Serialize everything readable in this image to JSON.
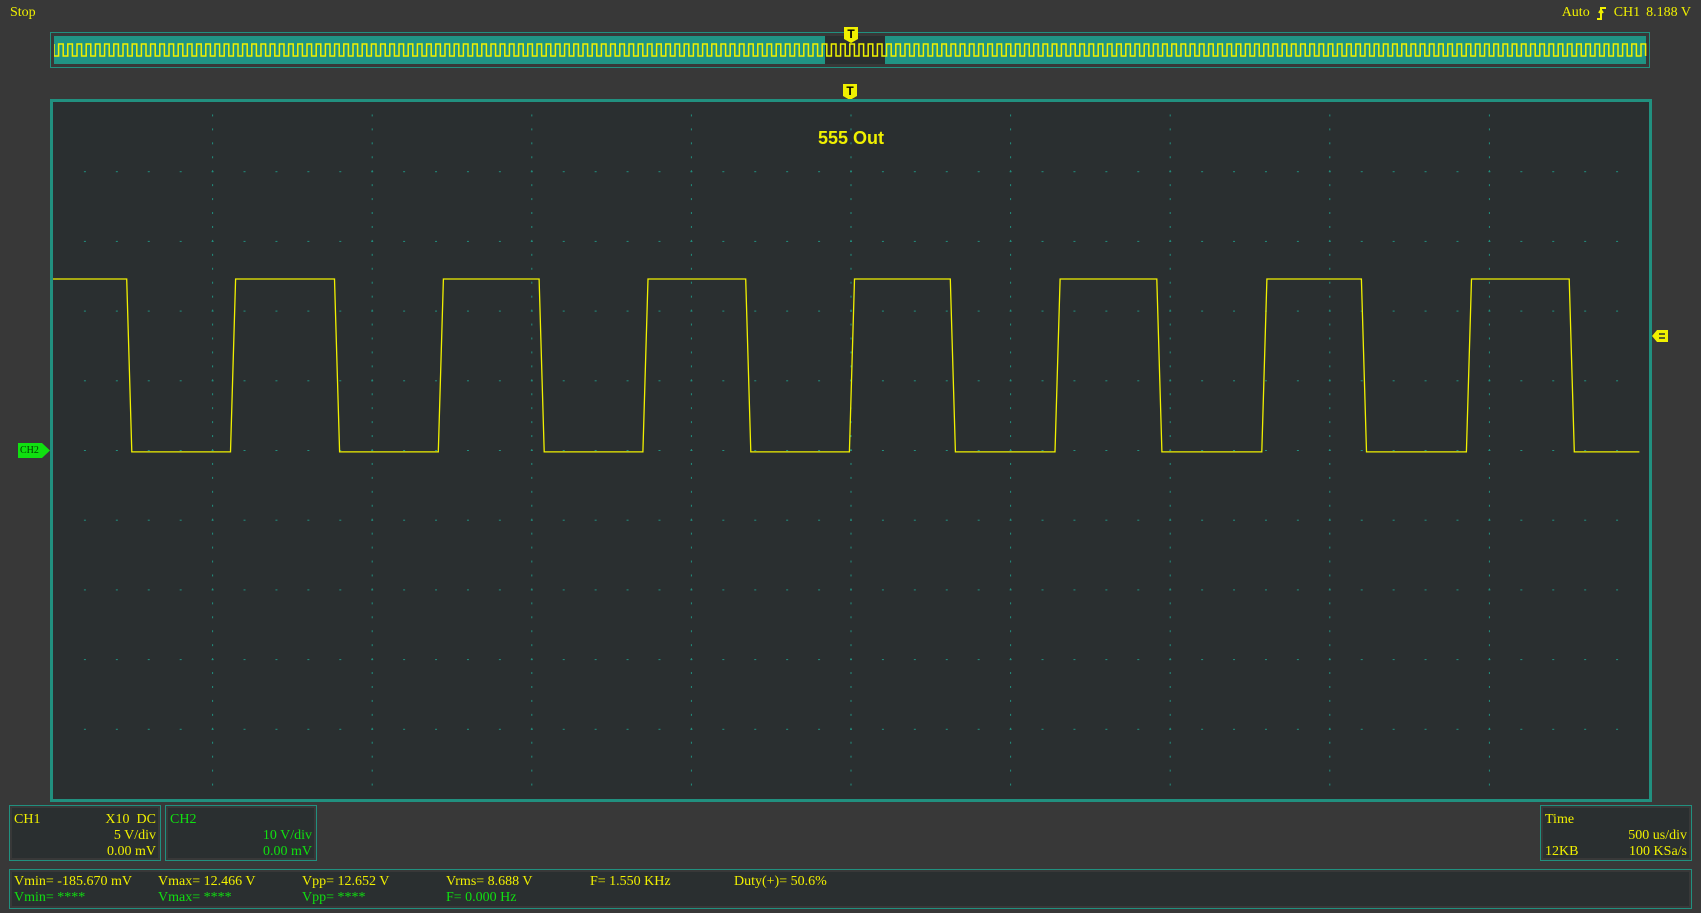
{
  "status": {
    "run_state": "Stop",
    "trigger_mode": "Auto",
    "trigger_icon": "rising-edge-icon",
    "trigger_source": "CH1",
    "trigger_level": "8.188 V"
  },
  "plot": {
    "title": "555 Out",
    "ch2_marker": "CH2",
    "trigger_marker": "T"
  },
  "colors": {
    "ch1": "#f0f000",
    "ch2": "#10e010",
    "grid": "#21907f",
    "background": "#2a2f30"
  },
  "ch1": {
    "label": "CH1",
    "probe": "X10",
    "coupling": "DC",
    "scale": "5 V/div",
    "offset": "0.00 mV"
  },
  "ch2": {
    "label": "CH2",
    "scale": "10 V/div",
    "offset": "0.00 mV"
  },
  "timebase": {
    "label": "Time",
    "scale": "500 us/div",
    "memory": "12KB",
    "sample_rate": "100 KSa/s"
  },
  "measurements": {
    "ch1": {
      "vmin": "Vmin= -185.670 mV",
      "vmax": "Vmax= 12.466 V",
      "vpp": "Vpp= 12.652 V",
      "vrms": "Vrms= 8.688 V",
      "freq": "F= 1.550 KHz",
      "duty": "Duty(+)= 50.6%"
    },
    "ch2": {
      "vmin": "Vmin= ****",
      "vmax": "Vmax= ****",
      "vpp": "Vpp= ****",
      "freq": "F= 0.000 Hz"
    }
  },
  "chart_data": {
    "type": "line",
    "xlabel": "",
    "ylabel": "",
    "x_unit": "ms",
    "y_unit": "V",
    "xlim": [
      -2.5,
      2.5
    ],
    "ylim": [
      -25,
      25
    ],
    "grid": true,
    "x_divisions": 10,
    "y_divisions": 10,
    "series": [
      {
        "name": "CH1",
        "high": 12.3,
        "low": -0.1,
        "start": -2.5,
        "end": 2.47,
        "initial_state": "high",
        "falling_edges": [
          -2.261,
          -1.61,
          -0.969,
          -0.322,
          0.319,
          0.966,
          1.607,
          2.258
        ],
        "rising_edges": [
          -1.936,
          -1.285,
          -0.644,
          0.003,
          0.647,
          1.295,
          1.936
        ]
      }
    ]
  }
}
